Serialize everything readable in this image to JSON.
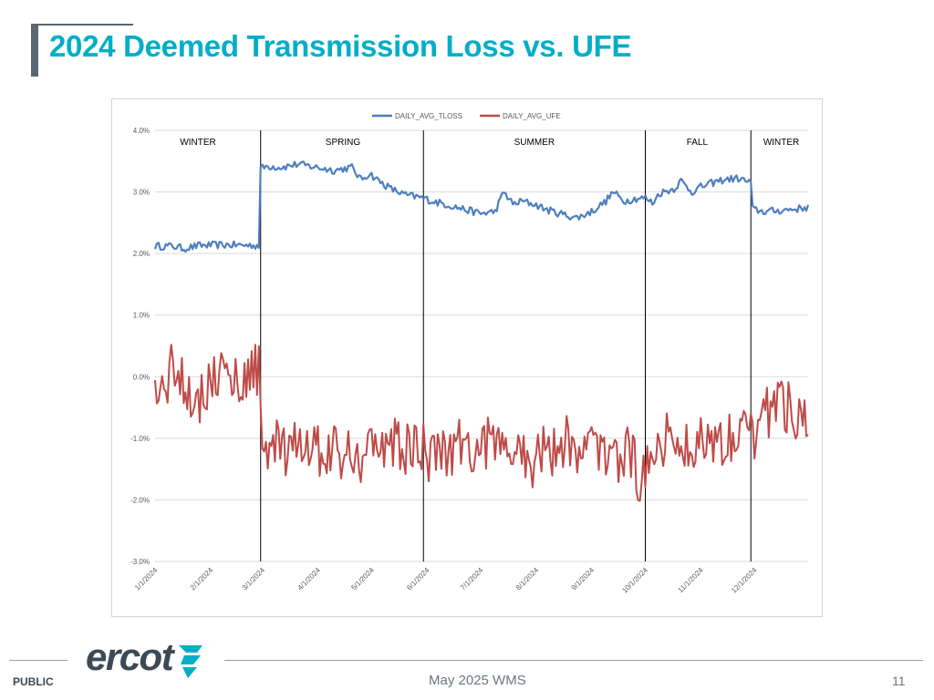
{
  "slide": {
    "title": "2024 Deemed Transmission Loss vs. UFE",
    "footer": {
      "classification": "PUBLIC",
      "center_text": "May 2025 WMS",
      "page_number": "11"
    },
    "logo": {
      "text": "ercot"
    }
  },
  "colors": {
    "title": "#00AEC7",
    "tloss": "#4F7FBF",
    "ufe": "#BE4B48",
    "gray": "#5b6770"
  },
  "chart_data": {
    "type": "line",
    "legend": {
      "position": "top-center",
      "entries": [
        "DAILY_AVG_TLOSS",
        "DAILY_AVG_UFE"
      ]
    },
    "ylim": [
      -0.03,
      0.04
    ],
    "y_ticks": [
      {
        "value": 0.04,
        "label": "4.0%"
      },
      {
        "value": 0.03,
        "label": "3.0%"
      },
      {
        "value": 0.02,
        "label": "2.0%"
      },
      {
        "value": 0.01,
        "label": "1.0%"
      },
      {
        "value": 0.0,
        "label": "0.0%"
      },
      {
        "value": -0.01,
        "label": "-1.0%"
      },
      {
        "value": -0.02,
        "label": "-2.0%"
      },
      {
        "value": -0.03,
        "label": "-3.0%"
      }
    ],
    "x_range_days": [
      0,
      365
    ],
    "x_ticks": [
      {
        "day": 0,
        "label": "1/1/2024"
      },
      {
        "day": 31,
        "label": "2/1/2024"
      },
      {
        "day": 60,
        "label": "3/1/2024"
      },
      {
        "day": 91,
        "label": "4/1/2024"
      },
      {
        "day": 121,
        "label": "5/1/2024"
      },
      {
        "day": 152,
        "label": "6/1/2024"
      },
      {
        "day": 182,
        "label": "7/1/2024"
      },
      {
        "day": 213,
        "label": "8/1/2024"
      },
      {
        "day": 244,
        "label": "9/1/2024"
      },
      {
        "day": 274,
        "label": "10/1/2024"
      },
      {
        "day": 305,
        "label": "11/1/2024"
      },
      {
        "day": 335,
        "label": "12/1/2024"
      }
    ],
    "season_dividers_day": [
      59,
      150,
      274,
      333
    ],
    "season_labels": [
      {
        "label": "WINTER",
        "center_day": 24
      },
      {
        "label": "SPRING",
        "center_day": 105
      },
      {
        "label": "SUMMER",
        "center_day": 212
      },
      {
        "label": "FALL",
        "center_day": 303
      },
      {
        "label": "WINTER",
        "center_day": 350
      }
    ],
    "series": [
      {
        "name": "DAILY_AVG_TLOSS",
        "anchors": [
          [
            0,
            0.0212
          ],
          [
            10,
            0.0212
          ],
          [
            16,
            0.0208
          ],
          [
            25,
            0.0213
          ],
          [
            40,
            0.0214
          ],
          [
            58,
            0.0213
          ],
          [
            59,
            0.0338
          ],
          [
            63,
            0.0342
          ],
          [
            70,
            0.034
          ],
          [
            80,
            0.0345
          ],
          [
            90,
            0.034
          ],
          [
            100,
            0.0335
          ],
          [
            110,
            0.034
          ],
          [
            115,
            0.032
          ],
          [
            120,
            0.033
          ],
          [
            125,
            0.0318
          ],
          [
            132,
            0.0305
          ],
          [
            140,
            0.0295
          ],
          [
            150,
            0.029
          ],
          [
            155,
            0.0285
          ],
          [
            165,
            0.0278
          ],
          [
            175,
            0.027
          ],
          [
            182,
            0.0265
          ],
          [
            190,
            0.0268
          ],
          [
            195,
            0.03
          ],
          [
            200,
            0.028
          ],
          [
            205,
            0.0285
          ],
          [
            212,
            0.028
          ],
          [
            220,
            0.027
          ],
          [
            230,
            0.0262
          ],
          [
            236,
            0.0258
          ],
          [
            244,
            0.0268
          ],
          [
            252,
            0.0285
          ],
          [
            256,
            0.03
          ],
          [
            262,
            0.0285
          ],
          [
            270,
            0.029
          ],
          [
            274,
            0.029
          ],
          [
            278,
            0.0282
          ],
          [
            282,
            0.0298
          ],
          [
            290,
            0.0305
          ],
          [
            294,
            0.0318
          ],
          [
            300,
            0.03
          ],
          [
            305,
            0.0308
          ],
          [
            312,
            0.0315
          ],
          [
            318,
            0.032
          ],
          [
            326,
            0.0322
          ],
          [
            330,
            0.0318
          ],
          [
            333,
            0.0315
          ],
          [
            334,
            0.0272
          ],
          [
            340,
            0.0268
          ],
          [
            350,
            0.027
          ],
          [
            360,
            0.0273
          ],
          [
            365,
            0.0275
          ]
        ],
        "noise_amplitude": 0.0006
      },
      {
        "name": "DAILY_AVG_UFE",
        "anchors": [
          [
            0,
            -0.003
          ],
          [
            5,
            -0.002
          ],
          [
            10,
            0.002
          ],
          [
            15,
            0.0
          ],
          [
            20,
            -0.002
          ],
          [
            25,
            -0.004
          ],
          [
            30,
            -0.001
          ],
          [
            35,
            0.001
          ],
          [
            40,
            -0.0005
          ],
          [
            45,
            0.0
          ],
          [
            50,
            -0.001
          ],
          [
            55,
            0.002
          ],
          [
            58,
            0.001
          ],
          [
            59,
            -0.006
          ],
          [
            63,
            -0.013
          ],
          [
            68,
            -0.011
          ],
          [
            75,
            -0.014
          ],
          [
            80,
            -0.01
          ],
          [
            85,
            -0.012
          ],
          [
            90,
            -0.011
          ],
          [
            95,
            -0.013
          ],
          [
            100,
            -0.011
          ],
          [
            105,
            -0.014
          ],
          [
            110,
            -0.012
          ],
          [
            115,
            -0.013
          ],
          [
            120,
            -0.01
          ],
          [
            125,
            -0.0115
          ],
          [
            130,
            -0.012
          ],
          [
            135,
            -0.011
          ],
          [
            140,
            -0.012
          ],
          [
            145,
            -0.011
          ],
          [
            150,
            -0.012
          ],
          [
            152,
            -0.013
          ],
          [
            158,
            -0.011
          ],
          [
            165,
            -0.012
          ],
          [
            170,
            -0.01
          ],
          [
            175,
            -0.011
          ],
          [
            180,
            -0.0125
          ],
          [
            185,
            -0.0105
          ],
          [
            190,
            -0.011
          ],
          [
            195,
            -0.013
          ],
          [
            200,
            -0.0115
          ],
          [
            205,
            -0.0125
          ],
          [
            210,
            -0.014
          ],
          [
            215,
            -0.012
          ],
          [
            220,
            -0.013
          ],
          [
            225,
            -0.011
          ],
          [
            230,
            -0.01
          ],
          [
            235,
            -0.011
          ],
          [
            240,
            -0.012
          ],
          [
            245,
            -0.011
          ],
          [
            250,
            -0.013
          ],
          [
            255,
            -0.0115
          ],
          [
            260,
            -0.013
          ],
          [
            265,
            -0.012
          ],
          [
            270,
            -0.016
          ],
          [
            272,
            -0.0205
          ],
          [
            274,
            -0.014
          ],
          [
            278,
            -0.011
          ],
          [
            285,
            -0.01
          ],
          [
            290,
            -0.011
          ],
          [
            295,
            -0.0105
          ],
          [
            300,
            -0.012
          ],
          [
            305,
            -0.01
          ],
          [
            310,
            -0.009
          ],
          [
            315,
            -0.011
          ],
          [
            320,
            -0.01
          ],
          [
            325,
            -0.008
          ],
          [
            330,
            -0.007
          ],
          [
            333,
            -0.008
          ],
          [
            334,
            -0.011
          ],
          [
            340,
            -0.006
          ],
          [
            345,
            -0.005
          ],
          [
            350,
            -0.004
          ],
          [
            355,
            -0.005
          ],
          [
            360,
            -0.006
          ],
          [
            365,
            -0.007
          ]
        ],
        "noise_amplitude": 0.0045
      }
    ]
  }
}
